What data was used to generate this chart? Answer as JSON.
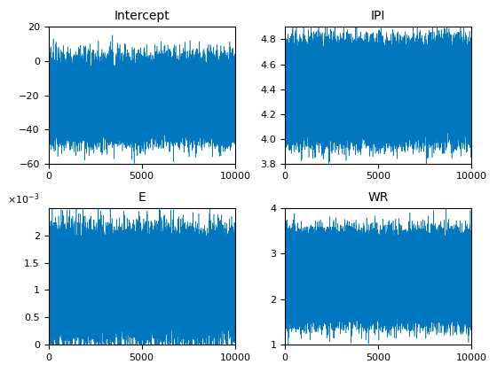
{
  "n_points": 10000,
  "line_color": "#0077BE",
  "xlim": [
    0,
    10000
  ],
  "axes": [
    {
      "title": "Intercept",
      "ylim": [
        -60,
        20
      ],
      "yticks": [
        -60,
        -40,
        -20,
        0,
        20
      ],
      "band1_mean": -5,
      "band1_std": 6,
      "band2_mean": -38,
      "band2_std": 6,
      "mix_prob": 0.35
    },
    {
      "title": "IPI",
      "ylim": [
        3.8,
        4.9
      ],
      "yticks": [
        3.8,
        4.0,
        4.2,
        4.4,
        4.6,
        4.8
      ],
      "band1_mean": 4.68,
      "band1_std": 0.08,
      "band2_mean": 4.08,
      "band2_std": 0.08,
      "mix_prob": 0.45
    },
    {
      "title": "E",
      "ylim": [
        0,
        0.0025
      ],
      "yticks": [
        0.0,
        0.0005,
        0.001,
        0.0015,
        0.002
      ],
      "band1_mean": 0.00175,
      "band1_std": 0.00025,
      "band2_mean": 0.00045,
      "band2_std": 0.00025,
      "mix_prob": 0.55,
      "use_sci": true
    },
    {
      "title": "WR",
      "ylim": [
        1,
        4
      ],
      "yticks": [
        1,
        2,
        3,
        4
      ],
      "band1_mean": 3.2,
      "band1_std": 0.2,
      "band2_mean": 1.7,
      "band2_std": 0.2,
      "mix_prob": 0.55
    }
  ],
  "xticks": [
    0,
    5000,
    10000
  ],
  "figsize": [
    5.6,
    4.2
  ],
  "dpi": 100
}
